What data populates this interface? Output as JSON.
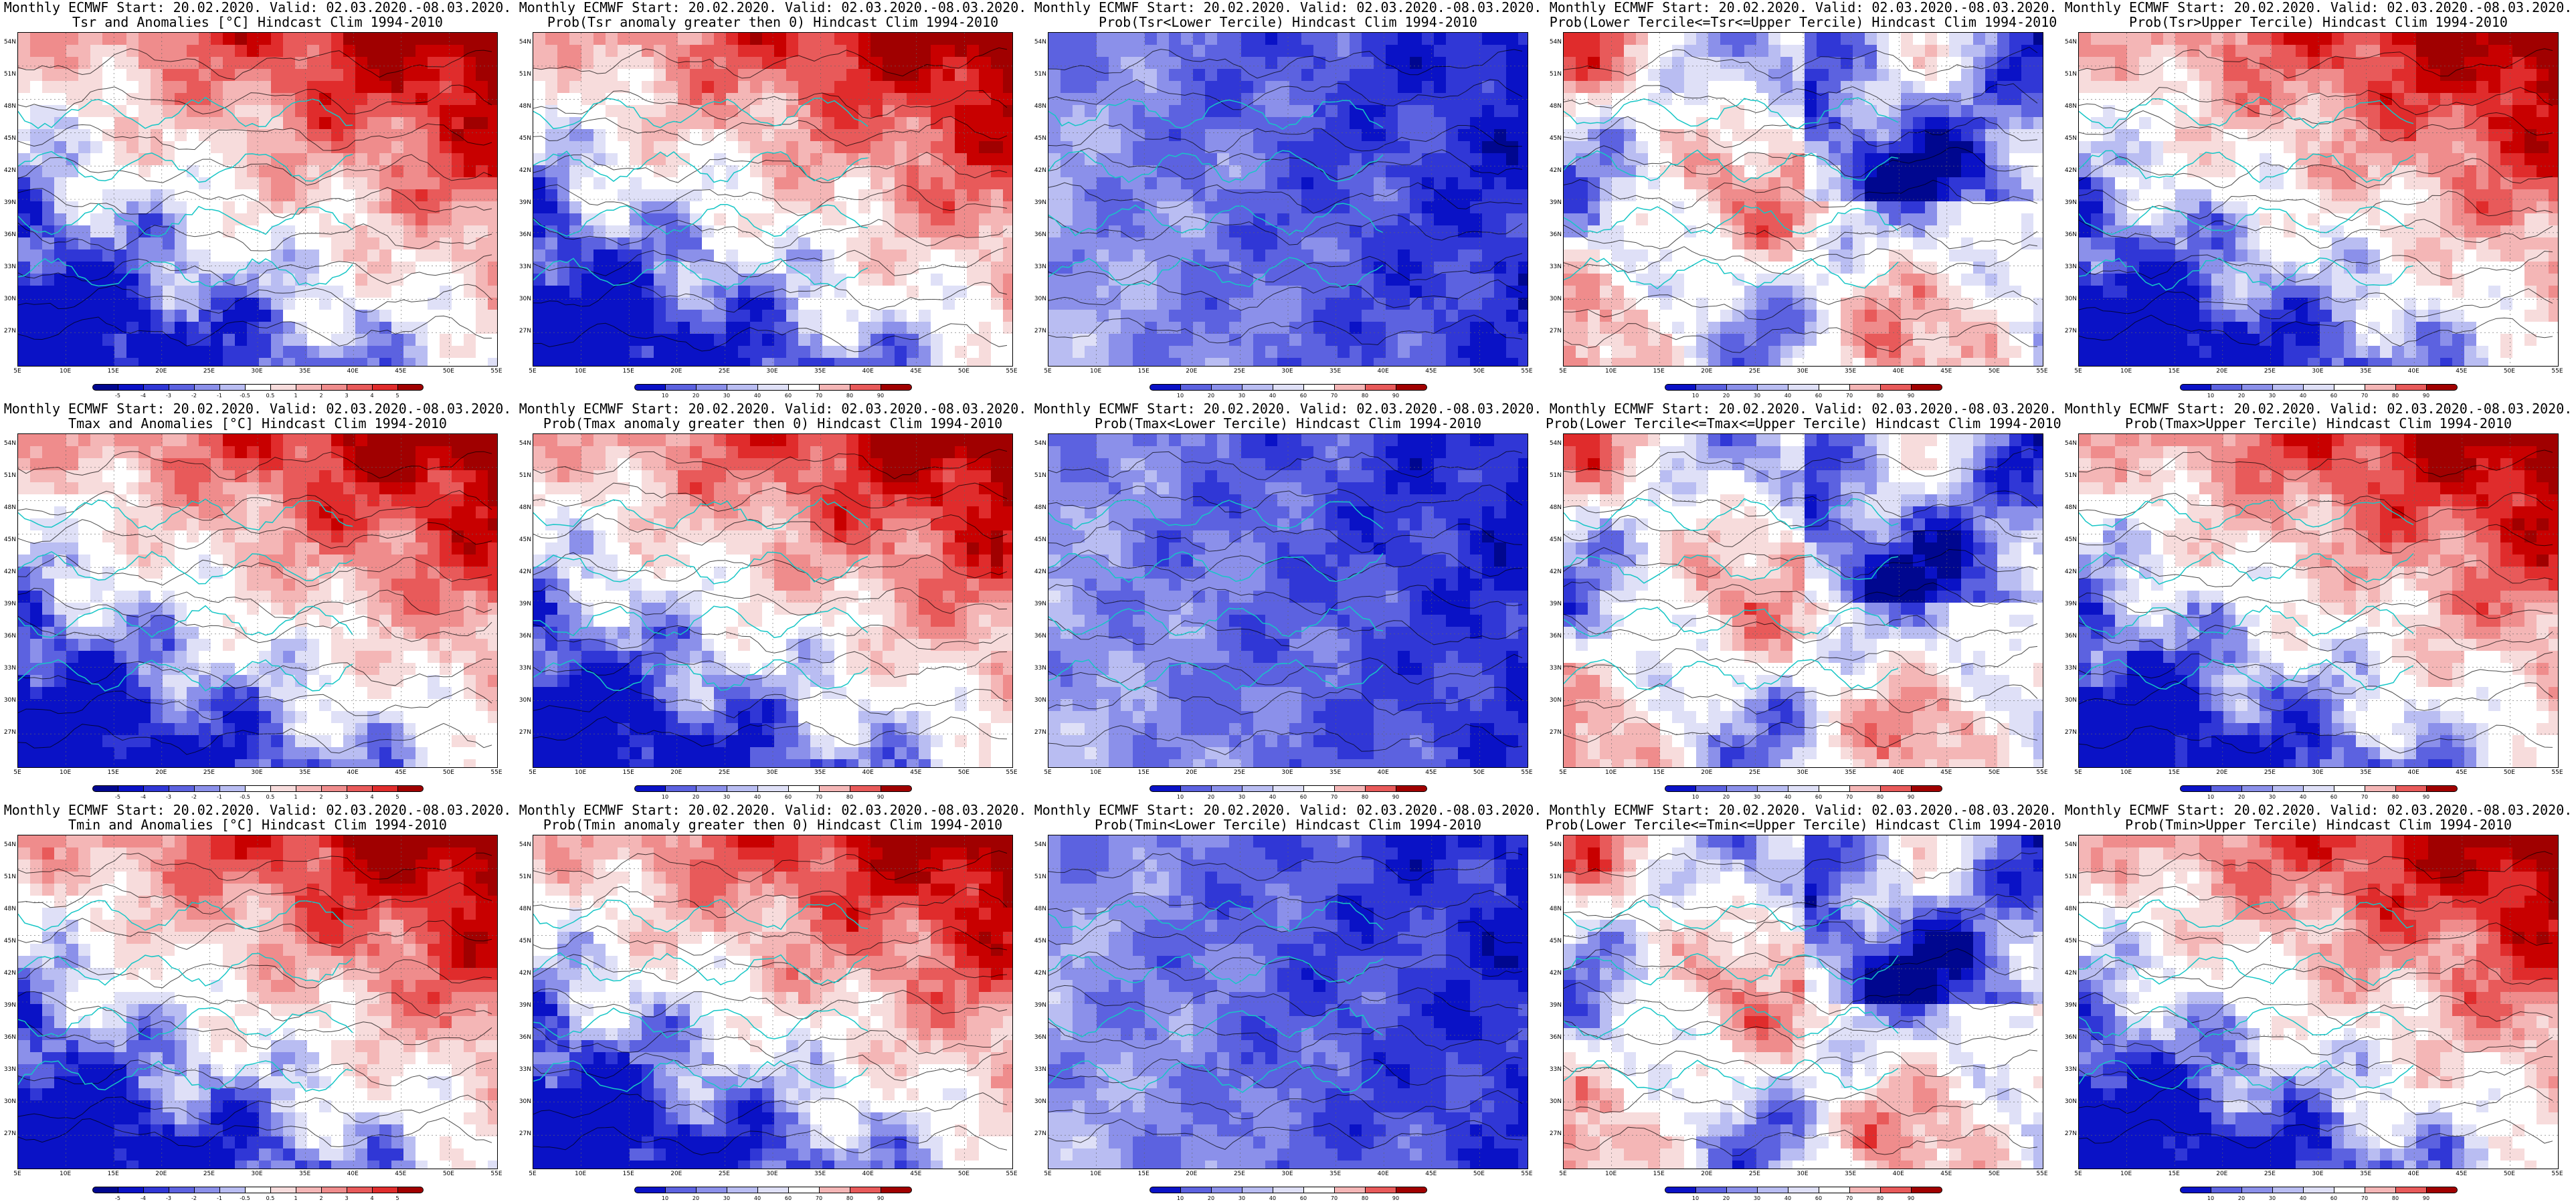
{
  "figure": {
    "header": "Monthly ECMWF Start: 20.02.2020. Valid: 02.03.2020.-08.03.2020.",
    "lat_ticks": [
      "54N",
      "51N",
      "48N",
      "45N",
      "42N",
      "39N",
      "36N",
      "33N",
      "30N",
      "27N"
    ],
    "lon_ticks": [
      "5E",
      "10E",
      "15E",
      "20E",
      "25E",
      "30E",
      "35E",
      "40E",
      "45E",
      "50E",
      "55E"
    ],
    "palette": {
      "warm": [
        "#ffffff",
        "#f7dcdc",
        "#f4b6b6",
        "#ef8c8c",
        "#e85a5a",
        "#e02c2c",
        "#c80000",
        "#a00000"
      ],
      "cool": [
        "#ffffff",
        "#dfe0f7",
        "#b9bdf2",
        "#8b90ea",
        "#5c62e0",
        "#3037d6",
        "#0a12c6",
        "#00078f"
      ],
      "contour": "#000000",
      "coast": "#17c6c6"
    }
  },
  "colorbars": {
    "anomaly": [
      "-5",
      "-4",
      "-3",
      "-2",
      "-1",
      "-0.5",
      "0.5",
      "1",
      "2",
      "3",
      "4",
      "5"
    ],
    "prob": [
      "10",
      "20",
      "30",
      "40",
      "60",
      "70",
      "80",
      "90"
    ]
  },
  "panels": [
    {
      "title": "Tsr and Anomalies [°C] Hindcast Clim 1994-2010",
      "cbar": "anomaly",
      "scheme": "anom",
      "bias": 0.55
    },
    {
      "title": "Prob(Tsr anomaly greater then 0) Hindcast Clim 1994-2010",
      "cbar": "prob",
      "scheme": "warm",
      "bias": 0.7
    },
    {
      "title": "Prob(Tsr<Lower Tercile) Hindcast Clim 1994-2010",
      "cbar": "prob",
      "scheme": "cool",
      "bias": 0.8
    },
    {
      "title": "Prob(Lower Tercile<=Tsr<=Upper Tercile) Hindcast Clim 1994-2010",
      "cbar": "prob",
      "scheme": "mid",
      "bias": 0.45
    },
    {
      "title": "Prob(Tsr>Upper Tercile) Hindcast Clim 1994-2010",
      "cbar": "prob",
      "scheme": "upper",
      "bias": 0.6
    },
    {
      "title": "Tmax and Anomalies [°C] Hindcast Clim 1994-2010",
      "cbar": "anomaly",
      "scheme": "anom",
      "bias": 0.5
    },
    {
      "title": "Prob(Tmax anomaly greater then 0) Hindcast Clim 1994-2010",
      "cbar": "prob",
      "scheme": "warm",
      "bias": 0.68
    },
    {
      "title": "Prob(Tmax<Lower Tercile) Hindcast Clim 1994-2010",
      "cbar": "prob",
      "scheme": "cool",
      "bias": 0.72
    },
    {
      "title": "Prob(Lower Tercile<=Tmax<=Upper Tercile) Hindcast Clim 1994-2010",
      "cbar": "prob",
      "scheme": "mid",
      "bias": 0.4
    },
    {
      "title": "Prob(Tmax>Upper Tercile) Hindcast Clim 1994-2010",
      "cbar": "prob",
      "scheme": "upper",
      "bias": 0.58
    },
    {
      "title": "Tmin and Anomalies [°C] Hindcast Clim 1994-2010",
      "cbar": "anomaly",
      "scheme": "anom",
      "bias": 0.58
    },
    {
      "title": "Prob(Tmin anomaly greater then 0) Hindcast Clim 1994-2010",
      "cbar": "prob",
      "scheme": "warm",
      "bias": 0.72
    },
    {
      "title": "Prob(Tmin<Lower Tercile) Hindcast Clim 1994-2010",
      "cbar": "prob",
      "scheme": "cool",
      "bias": 0.85
    },
    {
      "title": "Prob(Lower Tercile<=Tmin<=Upper Tercile) Hindcast Clim 1994-2010",
      "cbar": "prob",
      "scheme": "mid",
      "bias": 0.42
    },
    {
      "title": "Prob(Tmin>Upper Tercile) Hindcast Clim 1994-2010",
      "cbar": "prob",
      "scheme": "upper",
      "bias": 0.62
    }
  ]
}
